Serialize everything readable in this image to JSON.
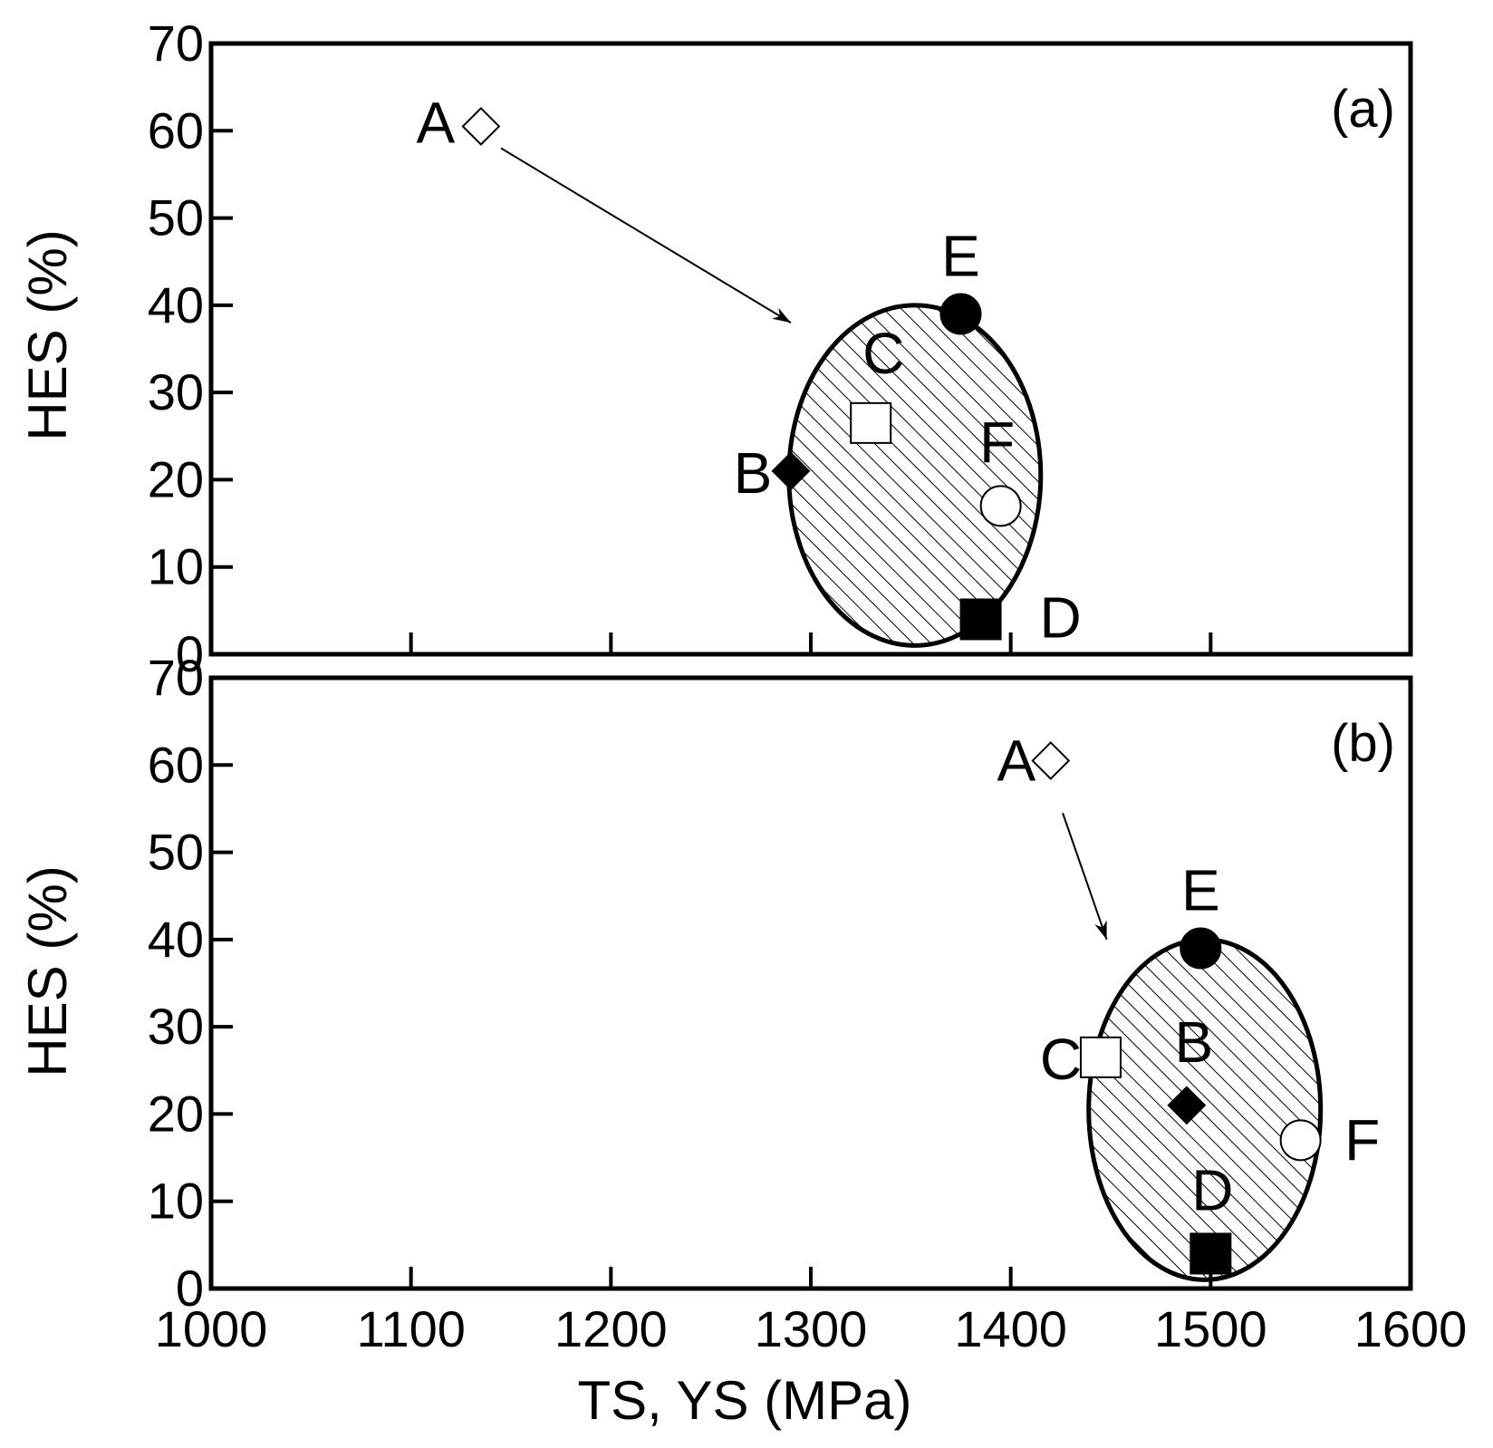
{
  "chart_data": [
    {
      "type": "scatter",
      "panel_label": "(a)",
      "ylabel": "HES (%)",
      "xlabel": "",
      "xlim": [
        1000,
        1600
      ],
      "ylim": [
        0,
        70
      ],
      "xticks": [
        1000,
        1100,
        1200,
        1300,
        1400,
        1500,
        1600
      ],
      "yticks": [
        0,
        10,
        20,
        30,
        40,
        50,
        60,
        70
      ],
      "x_tick_labels_shown": false,
      "points": [
        {
          "label": "A",
          "x": 1135,
          "y": 60.5,
          "marker": "diamond-open"
        },
        {
          "label": "B",
          "x": 1290,
          "y": 21,
          "marker": "diamond-filled"
        },
        {
          "label": "C",
          "x": 1330,
          "y": 26.5,
          "marker": "square-open"
        },
        {
          "label": "D",
          "x": 1385,
          "y": 4,
          "marker": "square-filled"
        },
        {
          "label": "E",
          "x": 1375,
          "y": 39,
          "marker": "circle-filled"
        },
        {
          "label": "F",
          "x": 1395,
          "y": 17,
          "marker": "circle-open"
        }
      ],
      "region": {
        "shape": "ellipse",
        "x_center": 1352,
        "y_center": 20.5,
        "x_halfwidth": 63,
        "y_halfheight": 19.5,
        "fill": "hatched"
      },
      "arrow": {
        "from": [
          1145,
          58
        ],
        "to": [
          1290,
          38
        ]
      }
    },
    {
      "type": "scatter",
      "panel_label": "(b)",
      "ylabel": "HES (%)",
      "xlabel": "TS, YS (MPa)",
      "xlim": [
        1000,
        1600
      ],
      "ylim": [
        0,
        70
      ],
      "xticks": [
        1000,
        1100,
        1200,
        1300,
        1400,
        1500,
        1600
      ],
      "yticks": [
        0,
        10,
        20,
        30,
        40,
        50,
        60,
        70
      ],
      "x_tick_labels_shown": true,
      "points": [
        {
          "label": "A",
          "x": 1420,
          "y": 60.5,
          "marker": "diamond-open"
        },
        {
          "label": "B",
          "x": 1488,
          "y": 21,
          "marker": "diamond-filled"
        },
        {
          "label": "C",
          "x": 1445,
          "y": 26.5,
          "marker": "square-open"
        },
        {
          "label": "D",
          "x": 1500,
          "y": 4,
          "marker": "square-filled"
        },
        {
          "label": "E",
          "x": 1495,
          "y": 39,
          "marker": "circle-filled"
        },
        {
          "label": "F",
          "x": 1545,
          "y": 17,
          "marker": "circle-open"
        }
      ],
      "region": {
        "shape": "ellipse",
        "x_center": 1497,
        "y_center": 20.5,
        "x_halfwidth": 58,
        "y_halfheight": 19.5,
        "fill": "hatched"
      },
      "arrow": {
        "from": [
          1426,
          54.5
        ],
        "to": [
          1448,
          40
        ]
      }
    }
  ]
}
